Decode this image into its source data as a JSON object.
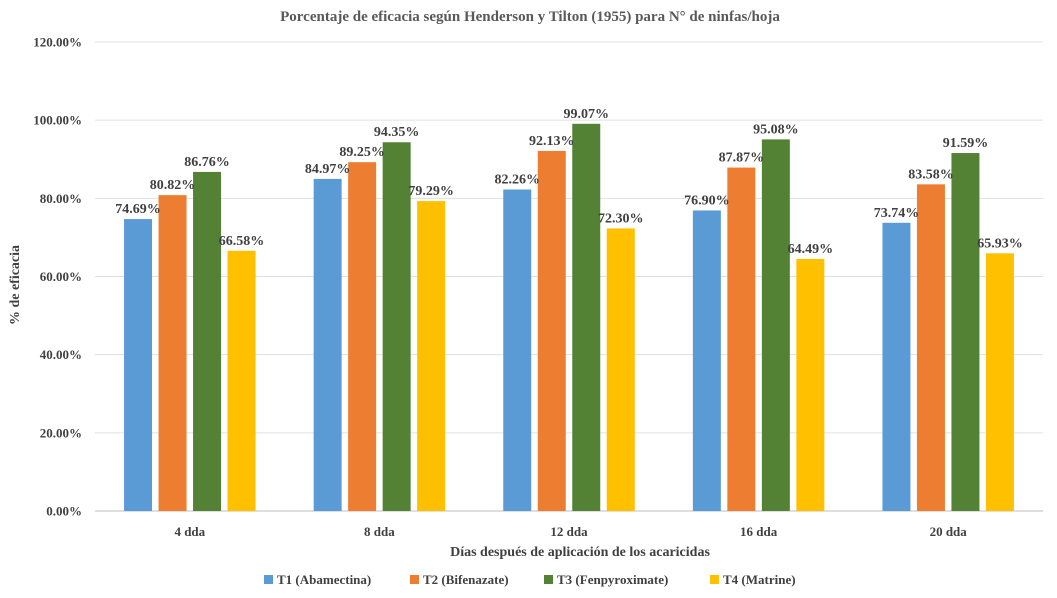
{
  "chart_data": {
    "type": "bar",
    "title": "Porcentaje de eficacia según Henderson y Tilton (1955) para N° de ninfas/hoja",
    "xlabel": "Días después de aplicación de los acaricidas",
    "ylabel": "% de eficacia",
    "ylim": [
      0,
      120
    ],
    "yticks": [
      0,
      20,
      40,
      60,
      80,
      100,
      120
    ],
    "ytick_labels": [
      "0.00%",
      "20.00%",
      "40.00%",
      "60.00%",
      "80.00%",
      "100.00%",
      "120.00%"
    ],
    "grid": true,
    "legend_position": "bottom",
    "categories": [
      "4 dda",
      "8 dda",
      "12 dda",
      "16 dda",
      "20 dda"
    ],
    "series": [
      {
        "name": "T1 (Abamectina)",
        "color": "#5b9bd5",
        "values": [
          74.69,
          84.97,
          82.26,
          76.9,
          73.74
        ],
        "labels": [
          "74.69%",
          "84.97%",
          "82.26%",
          "76.90%",
          "73.74%"
        ]
      },
      {
        "name": "T2 (Bifenazate)",
        "color": "#ed7d31",
        "values": [
          80.82,
          89.25,
          92.13,
          87.87,
          83.58
        ],
        "labels": [
          "80.82%",
          "89.25%",
          "92.13%",
          "87.87%",
          "83.58%"
        ]
      },
      {
        "name": "T3 (Fenpyroximate)",
        "color": "#548235",
        "values": [
          86.76,
          94.35,
          99.07,
          95.08,
          91.59
        ],
        "labels": [
          "86.76%",
          "94.35%",
          "99.07%",
          "95.08%",
          "91.59%"
        ]
      },
      {
        "name": "T4 (Matrine)",
        "color": "#ffc000",
        "values": [
          66.58,
          79.29,
          72.3,
          64.49,
          65.93
        ],
        "labels": [
          "66.58%",
          "79.29%",
          "72.30%",
          "64.49%",
          "65.93%"
        ]
      }
    ]
  }
}
